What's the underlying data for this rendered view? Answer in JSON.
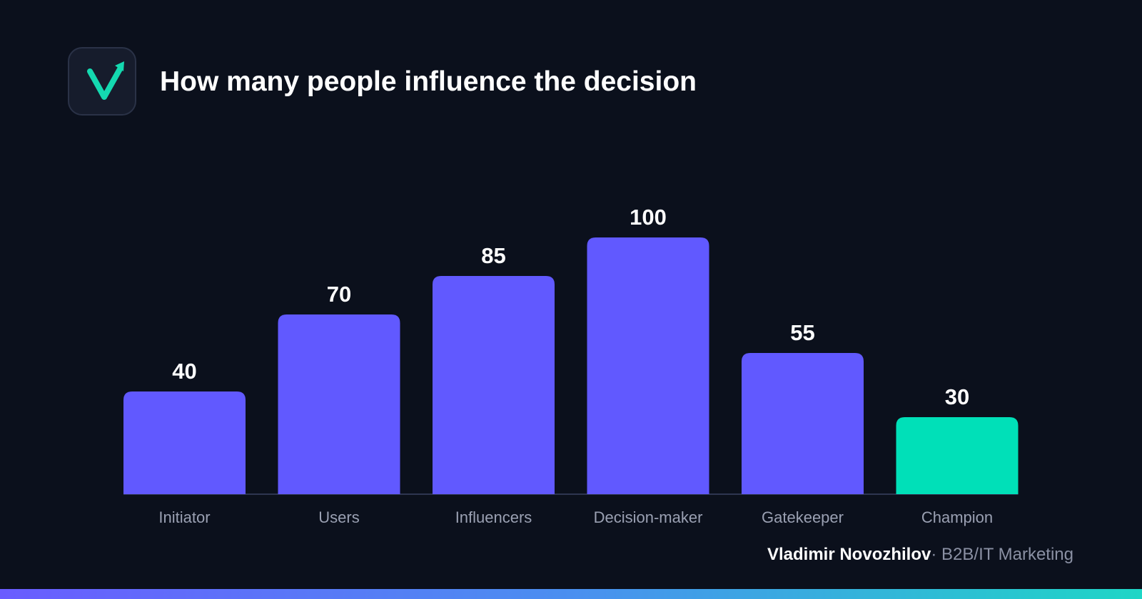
{
  "header": {
    "logo_icon": "checkmark-arrow-icon",
    "title": "How many people influence the decision"
  },
  "chart_data": {
    "type": "bar",
    "categories": [
      "Initiator",
      "Users",
      "Influencers",
      "Decision-maker",
      "Gatekeeper",
      "Champion"
    ],
    "values": [
      40,
      70,
      85,
      100,
      55,
      30
    ],
    "ylim": [
      0,
      100
    ],
    "grid": false,
    "legend": "none",
    "colors": [
      "#6159ff",
      "#6159ff",
      "#6159ff",
      "#6159ff",
      "#6159ff",
      "#00e0b8"
    ],
    "baseline_color": "#2e3550",
    "label_color": "#9aa0b2"
  },
  "footer": {
    "author": "Vladimir Novozhilov",
    "separator": "·",
    "role": "B2B/IT Marketing"
  }
}
